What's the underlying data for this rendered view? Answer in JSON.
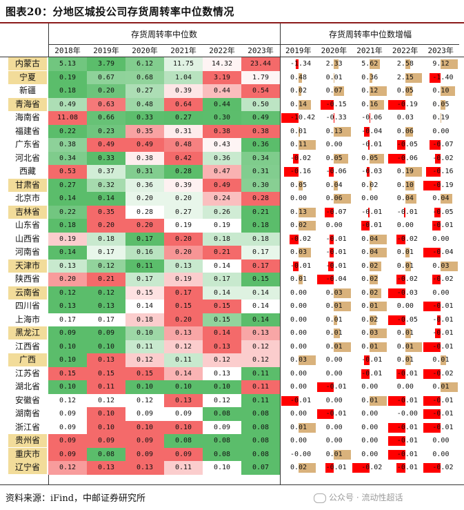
{
  "title": "图表20：分地区城投公司存货周转率中位数情况",
  "header_left": "存货周转率中位数",
  "header_right": "存货周转率中位数增幅",
  "years_left": [
    "2018年",
    "2019年",
    "2020年",
    "2021年",
    "2022年",
    "2023年"
  ],
  "years_right": [
    "2019年",
    "2020年",
    "2021年",
    "2022年",
    "2023年"
  ],
  "rows": [
    {
      "name": "内蒙古",
      "hl": true,
      "v": [
        "5.13",
        "3.79",
        "6.12",
        "11.75",
        "14.32",
        "23.44"
      ],
      "g": [
        "-1.34",
        "2.33",
        "5.62",
        "2.58",
        "9.12"
      ]
    },
    {
      "name": "宁夏",
      "hl": true,
      "v": [
        "0.19",
        "0.67",
        "0.68",
        "1.04",
        "3.19",
        "1.79"
      ],
      "g": [
        "0.48",
        "0.01",
        "0.36",
        "2.15",
        "-1.40"
      ]
    },
    {
      "name": "新疆",
      "hl": false,
      "v": [
        "0.18",
        "0.20",
        "0.27",
        "0.39",
        "0.44",
        "0.54"
      ],
      "g": [
        "0.02",
        "0.07",
        "0.12",
        "0.05",
        "0.10"
      ]
    },
    {
      "name": "青海省",
      "hl": true,
      "v": [
        "0.49",
        "0.63",
        "0.48",
        "0.64",
        "0.44",
        "0.50"
      ],
      "g": [
        "0.14",
        "-0.15",
        "0.16",
        "-0.19",
        "0.05"
      ]
    },
    {
      "name": "海南省",
      "hl": false,
      "v": [
        "11.08",
        "0.66",
        "0.33",
        "0.27",
        "0.30",
        "0.49"
      ],
      "g": [
        "-10.42",
        "-0.33",
        "-0.06",
        "0.03",
        "0.19"
      ]
    },
    {
      "name": "福建省",
      "hl": false,
      "v": [
        "0.22",
        "0.23",
        "0.35",
        "0.31",
        "0.38",
        "0.38"
      ],
      "g": [
        "0.01",
        "0.13",
        "-0.04",
        "0.06",
        "0.00"
      ]
    },
    {
      "name": "广东省",
      "hl": false,
      "v": [
        "0.38",
        "0.49",
        "0.49",
        "0.48",
        "0.43",
        "0.36"
      ],
      "g": [
        "0.11",
        "0.00",
        "-0.01",
        "-0.05",
        "-0.07"
      ]
    },
    {
      "name": "河北省",
      "hl": false,
      "v": [
        "0.34",
        "0.33",
        "0.38",
        "0.42",
        "0.36",
        "0.34"
      ],
      "g": [
        "-0.02",
        "0.05",
        "0.05",
        "-0.06",
        "-0.02"
      ]
    },
    {
      "name": "西藏",
      "hl": false,
      "v": [
        "0.53",
        "0.37",
        "0.31",
        "0.28",
        "0.47",
        "0.31"
      ],
      "g": [
        "-0.16",
        "-0.06",
        "-0.03",
        "0.19",
        "-0.16"
      ]
    },
    {
      "name": "甘肃省",
      "hl": true,
      "v": [
        "0.27",
        "0.32",
        "0.36",
        "0.39",
        "0.49",
        "0.30"
      ],
      "g": [
        "0.05",
        "0.04",
        "0.02",
        "0.10",
        "-0.19"
      ]
    },
    {
      "name": "北京市",
      "hl": false,
      "v": [
        "0.14",
        "0.14",
        "0.20",
        "0.20",
        "0.24",
        "0.28"
      ],
      "g": [
        "0.00",
        "0.06",
        "0.00",
        "0.04",
        "0.04"
      ]
    },
    {
      "name": "吉林省",
      "hl": true,
      "v": [
        "0.22",
        "0.35",
        "0.28",
        "0.27",
        "0.26",
        "0.21"
      ],
      "g": [
        "0.13",
        "-0.07",
        "-0.01",
        "-0.01",
        "-0.05"
      ]
    },
    {
      "name": "山东省",
      "hl": false,
      "v": [
        "0.18",
        "0.20",
        "0.20",
        "0.19",
        "0.19",
        "0.18"
      ],
      "g": [
        "0.02",
        "0.00",
        "-0.01",
        "0.00",
        "-0.01"
      ]
    },
    {
      "name": "山西省",
      "hl": false,
      "v": [
        "0.19",
        "0.18",
        "0.17",
        "0.20",
        "0.18",
        "0.18"
      ],
      "g": [
        "-0.02",
        "-0.01",
        "0.04",
        "-0.02",
        "0.00"
      ]
    },
    {
      "name": "河南省",
      "hl": false,
      "v": [
        "0.14",
        "0.17",
        "0.16",
        "0.20",
        "0.21",
        "0.17"
      ],
      "g": [
        "0.03",
        "-0.01",
        "0.04",
        "0.01",
        "-0.04"
      ]
    },
    {
      "name": "天津市",
      "hl": true,
      "v": [
        "0.13",
        "0.12",
        "0.11",
        "0.13",
        "0.14",
        "0.17"
      ],
      "g": [
        "-0.01",
        "-0.01",
        "0.02",
        "0.01",
        "0.03"
      ]
    },
    {
      "name": "陕西省",
      "hl": false,
      "v": [
        "0.20",
        "0.21",
        "0.17",
        "0.19",
        "0.17",
        "0.15"
      ],
      "g": [
        "0.01",
        "-0.04",
        "0.02",
        "-0.02",
        "-0.02"
      ]
    },
    {
      "name": "云南省",
      "hl": true,
      "v": [
        "0.12",
        "0.12",
        "0.15",
        "0.17",
        "0.14",
        "0.14"
      ],
      "g": [
        "0.00",
        "0.03",
        "0.02",
        "-0.03",
        "0.00"
      ]
    },
    {
      "name": "四川省",
      "hl": false,
      "v": [
        "0.13",
        "0.13",
        "0.14",
        "0.15",
        "0.15",
        "0.14"
      ],
      "g": [
        "0.00",
        "0.01",
        "0.01",
        "0.00",
        "-0.01"
      ]
    },
    {
      "name": "上海市",
      "hl": false,
      "v": [
        "0.17",
        "0.17",
        "0.18",
        "0.20",
        "0.15",
        "0.14"
      ],
      "g": [
        "0.00",
        "0.01",
        "0.02",
        "-0.05",
        "-0.01"
      ]
    },
    {
      "name": "黑龙江",
      "hl": true,
      "v": [
        "0.09",
        "0.09",
        "0.10",
        "0.13",
        "0.14",
        "0.13"
      ],
      "g": [
        "0.00",
        "0.01",
        "0.03",
        "0.01",
        "-0.01"
      ]
    },
    {
      "name": "江西省",
      "hl": false,
      "v": [
        "0.10",
        "0.10",
        "0.11",
        "0.12",
        "0.13",
        "0.12"
      ],
      "g": [
        "0.00",
        "0.01",
        "0.01",
        "0.01",
        "-0.01"
      ]
    },
    {
      "name": "广西",
      "hl": true,
      "v": [
        "0.10",
        "0.13",
        "0.12",
        "0.11",
        "0.12",
        "0.12"
      ],
      "g": [
        "0.03",
        "0.00",
        "-0.01",
        "0.01",
        "0.01"
      ]
    },
    {
      "name": "江苏省",
      "hl": false,
      "v": [
        "0.15",
        "0.15",
        "0.15",
        "0.14",
        "0.13",
        "0.11"
      ],
      "g": [
        "0.00",
        "0.00",
        "-0.01",
        "-0.01",
        "-0.02"
      ]
    },
    {
      "name": "湖北省",
      "hl": false,
      "v": [
        "0.10",
        "0.11",
        "0.10",
        "0.10",
        "0.10",
        "0.11"
      ],
      "g": [
        "0.00",
        "-0.01",
        "0.00",
        "0.00",
        "0.01"
      ]
    },
    {
      "name": "安徽省",
      "hl": false,
      "v": [
        "0.12",
        "0.12",
        "0.12",
        "0.13",
        "0.12",
        "0.11"
      ],
      "g": [
        "-0.01",
        "0.00",
        "0.01",
        "-0.01",
        "-0.01"
      ]
    },
    {
      "name": "湖南省",
      "hl": false,
      "v": [
        "0.09",
        "0.10",
        "0.09",
        "0.09",
        "0.08",
        "0.08"
      ],
      "g": [
        "0.00",
        "-0.01",
        "0.00",
        "-0.00",
        "-0.01"
      ]
    },
    {
      "name": "浙江省",
      "hl": false,
      "v": [
        "0.09",
        "0.10",
        "0.10",
        "0.10",
        "0.09",
        "0.08"
      ],
      "g": [
        "0.01",
        "0.00",
        "0.00",
        "-0.01",
        "-0.01"
      ]
    },
    {
      "name": "贵州省",
      "hl": true,
      "v": [
        "0.09",
        "0.09",
        "0.09",
        "0.08",
        "0.08",
        "0.08"
      ],
      "g": [
        "0.00",
        "0.00",
        "0.00",
        "-0.01",
        "0.00"
      ]
    },
    {
      "name": "重庆市",
      "hl": true,
      "v": [
        "0.09",
        "0.08",
        "0.09",
        "0.09",
        "0.08",
        "0.08"
      ],
      "g": [
        "-0.00",
        "0.01",
        "0.00",
        "-0.01",
        "0.00"
      ]
    },
    {
      "name": "辽宁省",
      "hl": true,
      "v": [
        "0.12",
        "0.13",
        "0.13",
        "0.11",
        "0.10",
        "0.07"
      ],
      "g": [
        "0.02",
        "-0.01",
        "-0.02",
        "-0.01",
        "-0.02"
      ]
    }
  ],
  "source": "资料来源：iFind，中邮证券研究所",
  "watermark": "公众号 · 流动性超话",
  "colors": {
    "pos_bar": "#d9b27c",
    "neg_bar": "#ff0000",
    "heat_low": "#5bbd6b",
    "heat_mid": "#ffffff",
    "heat_high": "#f46a6a",
    "accent": "#8b1a1a"
  }
}
